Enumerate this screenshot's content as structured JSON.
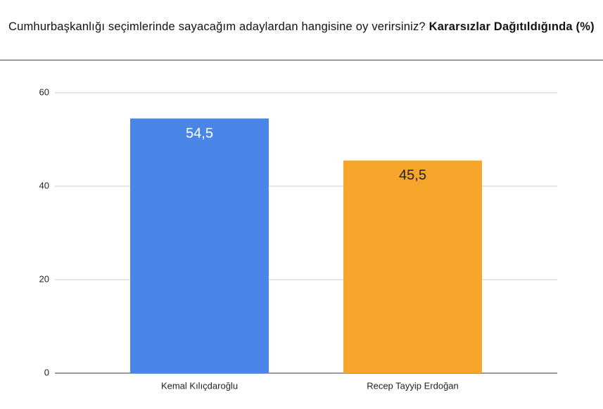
{
  "chart_data": {
    "type": "bar",
    "title": "Cumhurbaşkanlığı seçimlerinde sayacağım adaylardan hangisine oy verirsiniz?",
    "title_bold": "Kararsızlar Dağıtıldığında (%)",
    "categories": [
      "Kemal Kılıçdaroğlu",
      "Recep Tayyip Erdoğan"
    ],
    "values": [
      54.5,
      45.5
    ],
    "value_labels": [
      "54,5",
      "45,5"
    ],
    "colors": [
      "#4a86e8",
      "#f6a52b"
    ],
    "ylim": [
      0,
      60
    ],
    "yticks": [
      0,
      20,
      40,
      60
    ],
    "grid": true
  }
}
